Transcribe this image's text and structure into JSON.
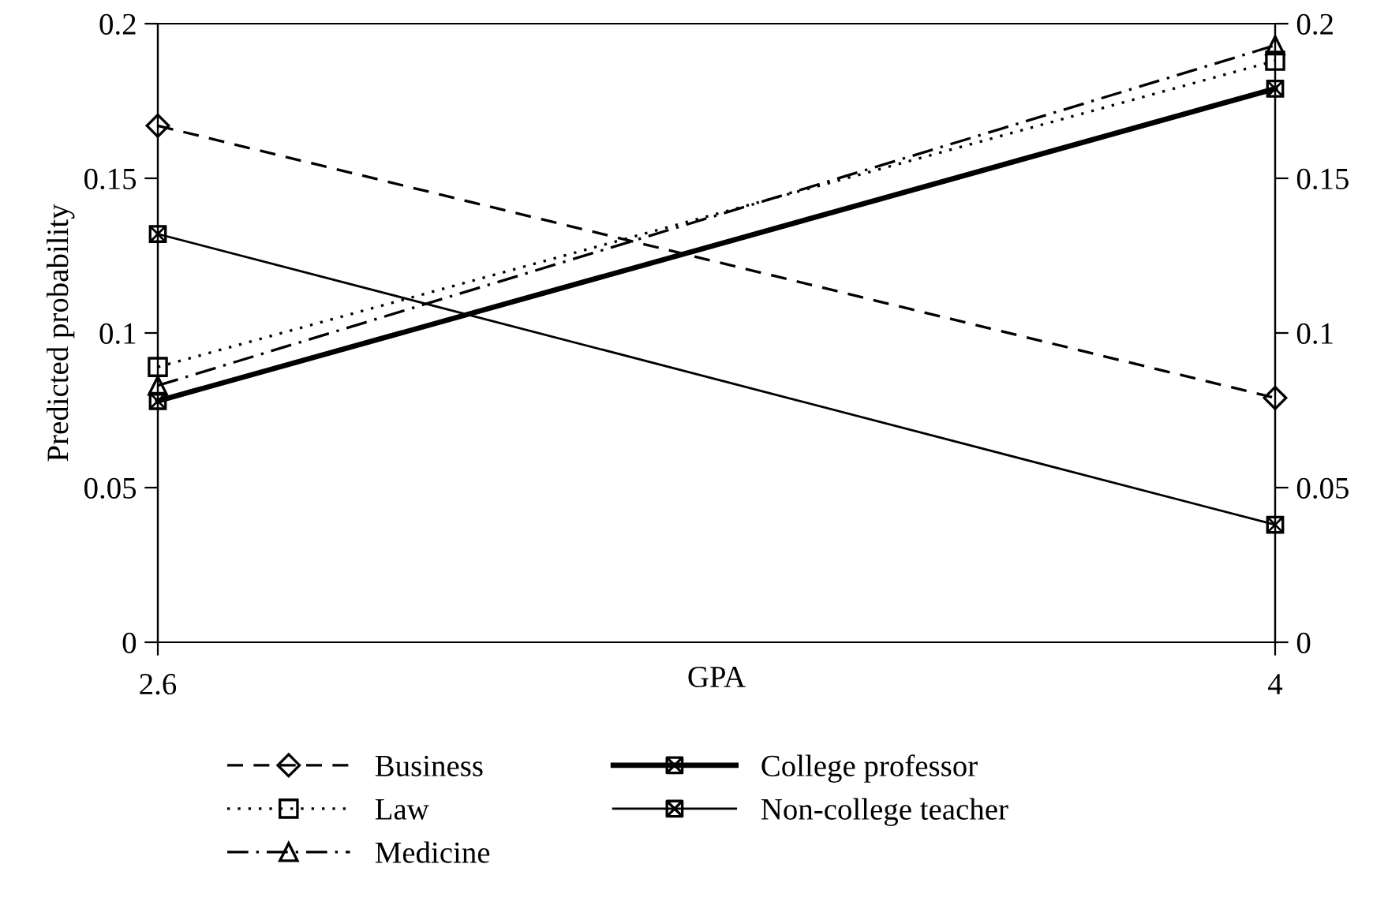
{
  "chart_data": {
    "type": "line",
    "xlabel": "GPA",
    "ylabel": "Predicted probability",
    "x": [
      2.6,
      4
    ],
    "xlim": [
      2.6,
      4
    ],
    "xticks": [
      2.6,
      4
    ],
    "ylim": [
      0,
      0.2
    ],
    "yticks": [
      0,
      0.05,
      0.1,
      0.15,
      0.2
    ],
    "y2lim": [
      0,
      0.2
    ],
    "y2ticks": [
      0,
      0.05,
      0.1,
      0.15,
      0.2
    ],
    "grid": false,
    "legend": "bottom",
    "series": [
      {
        "name": "Business",
        "color": "#000000",
        "values": [
          0.167,
          0.079
        ],
        "marker": "diamond",
        "line_style": "dashed"
      },
      {
        "name": "Law",
        "color": "#000000",
        "values": [
          0.089,
          0.188
        ],
        "marker": "square",
        "line_style": "dotted"
      },
      {
        "name": "Medicine",
        "color": "#000000",
        "values": [
          0.083,
          0.193
        ],
        "marker": "triangle",
        "line_style": "dashdot"
      },
      {
        "name": "College professor",
        "color": "#000000",
        "values": [
          0.078,
          0.179
        ],
        "marker": "square",
        "line_style": "solid"
      },
      {
        "name": "Non-college teacher",
        "color": "#000000",
        "values": [
          0.132,
          0.038
        ],
        "marker": "square",
        "line_style": "solid"
      }
    ]
  }
}
